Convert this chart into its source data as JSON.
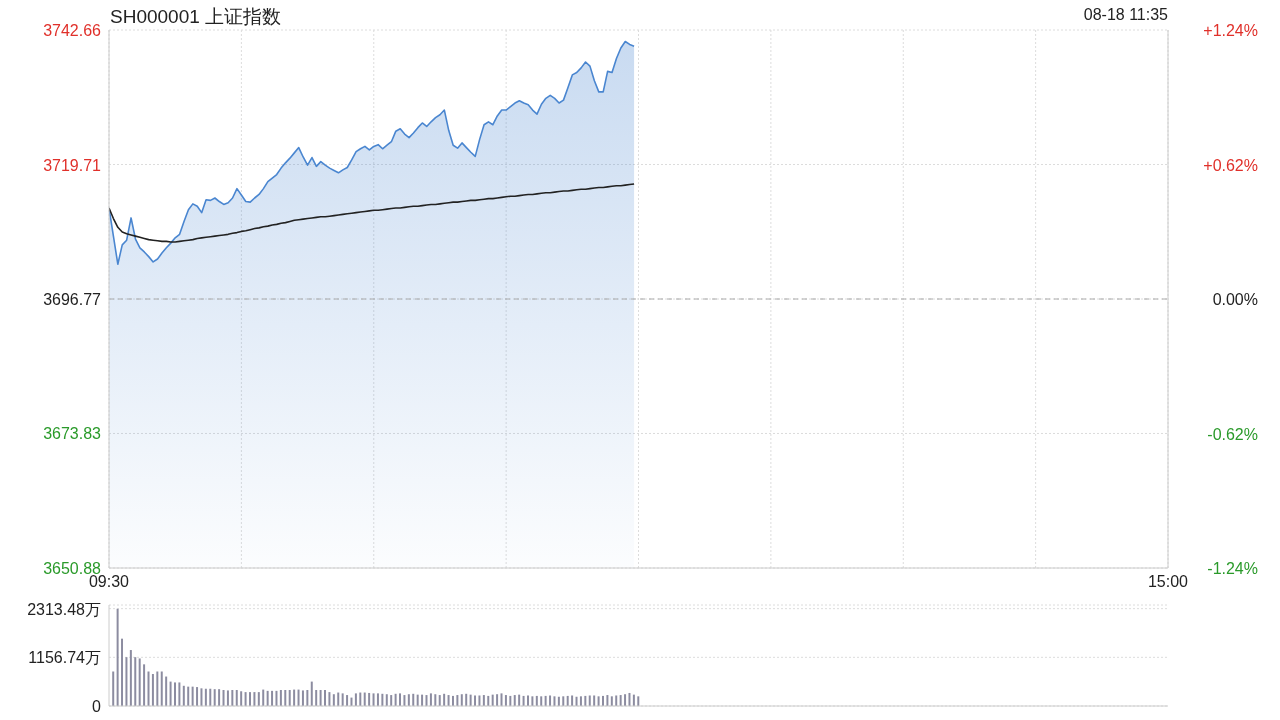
{
  "chart_data": [
    {
      "type": "area",
      "title": "SH000001 上证指数",
      "annotations": [
        "08-18 11:35"
      ],
      "categories": [
        "09:30",
        null,
        null,
        null,
        null,
        null,
        null,
        null,
        null,
        null,
        null,
        null,
        null,
        null,
        null,
        null,
        null,
        null,
        null,
        null,
        null,
        null,
        null,
        null,
        null,
        null,
        null,
        null,
        null,
        null,
        null,
        null,
        null,
        null,
        null,
        null,
        null,
        null,
        null,
        null,
        null,
        null,
        null,
        null,
        null,
        null,
        null,
        null,
        null,
        null,
        null,
        null,
        null,
        null,
        null,
        null,
        null,
        null,
        null,
        null,
        null,
        null,
        null,
        null,
        null,
        null,
        null,
        null,
        null,
        null,
        null,
        null,
        null,
        null,
        null,
        null,
        null,
        null,
        null,
        null,
        null,
        null,
        null,
        null,
        null,
        null,
        null,
        null,
        null,
        null,
        null,
        null,
        null,
        null,
        null,
        null,
        null,
        null,
        null,
        null,
        null,
        null,
        null,
        null,
        null,
        null,
        null,
        null,
        null,
        null,
        null,
        null,
        null,
        null,
        null,
        null,
        null,
        null,
        null,
        null,
        null,
        null,
        null,
        null,
        null,
        null,
        null,
        null,
        null,
        null,
        null,
        null,
        null,
        null,
        null,
        null,
        null,
        null,
        null,
        null,
        null,
        null,
        null,
        null,
        null,
        null,
        null,
        null,
        null,
        null,
        null,
        null,
        null,
        null,
        null,
        null,
        null,
        null,
        null,
        null,
        null,
        null,
        null,
        null,
        null,
        null,
        null,
        null,
        null,
        null,
        null,
        null,
        null,
        null,
        null,
        null,
        null,
        null,
        null,
        null,
        null,
        null,
        null,
        null,
        null,
        null,
        null,
        null,
        null,
        null,
        null,
        null,
        null,
        null,
        null,
        null,
        null,
        null,
        null,
        null,
        null,
        null,
        null,
        null,
        null,
        null,
        null,
        null,
        null,
        null,
        null,
        null,
        null,
        null,
        null,
        null,
        null,
        null,
        null,
        null,
        null,
        null,
        null,
        null,
        null,
        null,
        null,
        null,
        null,
        null,
        null,
        null,
        null,
        null,
        null,
        null,
        null,
        null,
        null,
        null,
        "15:00"
      ],
      "series": [
        {
          "color": "#4a86d0",
          "values": [
            3712.3,
            3707.5,
            3702.7,
            3706.0,
            3706.8,
            3710.6,
            3707.0,
            3705.5,
            3704.8,
            3704.0,
            3703.1,
            3703.6,
            3704.6,
            3705.5,
            3706.3,
            3707.2,
            3707.8,
            3710.0,
            3712.0,
            3713.0,
            3712.6,
            3711.5,
            3713.7,
            3713.6,
            3714.0,
            3713.4,
            3712.9,
            3713.2,
            3714.0,
            3715.6,
            3714.5,
            3713.4,
            3713.3,
            3714.0,
            3714.6,
            3715.6,
            3716.8,
            3717.4,
            3718.0,
            3719.1,
            3720.0,
            3720.8,
            3721.7,
            3722.6,
            3721.0,
            3719.6,
            3720.9,
            3719.4,
            3720.2,
            3719.6,
            3719.1,
            3718.7,
            3718.3,
            3718.8,
            3719.2,
            3720.5,
            3721.9,
            3722.4,
            3722.8,
            3722.2,
            3722.8,
            3723.1,
            3722.4,
            3723.0,
            3723.6,
            3725.4,
            3725.8,
            3724.9,
            3724.3,
            3725.1,
            3726.0,
            3726.8,
            3726.2,
            3727.0,
            3727.7,
            3728.2,
            3729.0,
            3725.5,
            3723.0,
            3722.5,
            3723.4,
            3722.6,
            3721.8,
            3721.1,
            3724.0,
            3726.5,
            3727.0,
            3726.5,
            3728.0,
            3729.0,
            3729.0,
            3729.6,
            3730.2,
            3730.6,
            3730.2,
            3729.9,
            3729.0,
            3728.3,
            3730.0,
            3731.0,
            3731.5,
            3731.0,
            3730.2,
            3730.7,
            3732.8,
            3735.0,
            3735.4,
            3736.2,
            3737.2,
            3736.5,
            3734.0,
            3732.1,
            3732.1,
            3735.6,
            3735.4,
            3737.8,
            3739.6,
            3740.7,
            3740.2,
            3739.9,
            null,
            null,
            null,
            null,
            null,
            null,
            null,
            null,
            null,
            null,
            null,
            null,
            null,
            null,
            null,
            null,
            null,
            null,
            null,
            null,
            null,
            null,
            null,
            null,
            null,
            null,
            null,
            null,
            null,
            null,
            null,
            null,
            null,
            null,
            null,
            null,
            null,
            null,
            null,
            null,
            null,
            null,
            null,
            null,
            null,
            null,
            null,
            null,
            null,
            null,
            null,
            null,
            null,
            null,
            null,
            null,
            null,
            null,
            null,
            null,
            null,
            null,
            null,
            null,
            null,
            null,
            null,
            null,
            null,
            null,
            null,
            null,
            null,
            null,
            null,
            null,
            null,
            null,
            null,
            null,
            null,
            null,
            null,
            null,
            null,
            null,
            null,
            null,
            null,
            null,
            null,
            null,
            null,
            null,
            null,
            null,
            null,
            null,
            null,
            null,
            null,
            null,
            null,
            null,
            null,
            null,
            null,
            null,
            null,
            null,
            null,
            null,
            null,
            null,
            null,
            null,
            null,
            null,
            null,
            null,
            null
          ]
        },
        {
          "type": "line",
          "color": "#222222",
          "values": [
            3712.3,
            3710.5,
            3709.0,
            3708.2,
            3707.9,
            3707.7,
            3707.5,
            3707.3,
            3707.1,
            3706.9,
            3706.8,
            3706.7,
            3706.6,
            3706.6,
            3706.5,
            3706.5,
            3706.6,
            3706.7,
            3706.8,
            3706.9,
            3707.1,
            3707.2,
            3707.3,
            3707.4,
            3707.5,
            3707.6,
            3707.7,
            3707.8,
            3708.0,
            3708.1,
            3708.3,
            3708.4,
            3708.6,
            3708.8,
            3708.9,
            3709.1,
            3709.2,
            3709.4,
            3709.5,
            3709.7,
            3709.8,
            3710.0,
            3710.2,
            3710.3,
            3710.4,
            3710.5,
            3710.6,
            3710.7,
            3710.8,
            3710.8,
            3710.9,
            3711.0,
            3711.1,
            3711.2,
            3711.3,
            3711.4,
            3711.5,
            3711.6,
            3711.7,
            3711.8,
            3711.9,
            3711.9,
            3712.0,
            3712.1,
            3712.2,
            3712.3,
            3712.3,
            3712.4,
            3712.5,
            3712.6,
            3712.6,
            3712.7,
            3712.8,
            3712.9,
            3712.9,
            3713.0,
            3713.1,
            3713.2,
            3713.3,
            3713.3,
            3713.4,
            3713.5,
            3713.6,
            3713.6,
            3713.7,
            3713.8,
            3713.9,
            3713.9,
            3714.0,
            3714.1,
            3714.2,
            3714.3,
            3714.3,
            3714.4,
            3714.5,
            3714.6,
            3714.6,
            3714.7,
            3714.8,
            3714.9,
            3714.9,
            3715.0,
            3715.1,
            3715.2,
            3715.2,
            3715.3,
            3715.4,
            3715.5,
            3715.5,
            3715.6,
            3715.7,
            3715.8,
            3715.8,
            3715.9,
            3716.0,
            3716.1,
            3716.1,
            3716.2,
            3716.3,
            3716.4,
            null,
            null,
            null,
            null,
            null,
            null,
            null,
            null,
            null,
            null,
            null,
            null,
            null,
            null,
            null,
            null,
            null,
            null,
            null,
            null,
            null,
            null,
            null,
            null,
            null,
            null,
            null,
            null,
            null,
            null,
            null,
            null,
            null,
            null,
            null,
            null,
            null,
            null,
            null,
            null,
            null,
            null,
            null,
            null,
            null,
            null,
            null,
            null,
            null,
            null,
            null,
            null,
            null,
            null,
            null,
            null,
            null,
            null,
            null,
            null,
            null,
            null,
            null,
            null,
            null,
            null,
            null,
            null,
            null,
            null,
            null,
            null,
            null,
            null,
            null,
            null,
            null,
            null,
            null,
            null,
            null,
            null,
            null,
            null,
            null,
            null,
            null,
            null,
            null,
            null,
            null,
            null,
            null,
            null,
            null,
            null,
            null,
            null,
            null,
            null,
            null,
            null,
            null,
            null,
            null,
            null,
            null,
            null,
            null,
            null,
            null,
            null,
            null,
            null,
            null,
            null,
            null,
            null,
            null,
            null,
            null
          ]
        }
      ],
      "ylim": [
        3650.88,
        3742.66
      ],
      "yticks": [
        3650.88,
        3673.83,
        3696.77,
        3719.71,
        3742.66
      ],
      "y2lim": [
        -1.24,
        1.24
      ],
      "y2ticks": [
        {
          "value": -1.24,
          "label": "-1.24%"
        },
        {
          "value": -0.62,
          "label": "-0.62%"
        },
        {
          "value": 0,
          "label": "0.00%"
        },
        {
          "value": 0.62,
          "label": "+0.62%"
        },
        {
          "value": 1.24,
          "label": "+1.24%"
        }
      ],
      "ref_lines": [
        {
          "axis": "y",
          "value": 3696.77,
          "line_style": "dashed",
          "color": "#aaaaaa"
        }
      ],
      "grid": true
    },
    {
      "type": "bar",
      "color": "#8c8ca0",
      "categories": [
        null,
        null,
        null,
        null,
        null,
        null,
        null,
        null,
        null,
        null,
        null,
        null,
        null,
        null,
        null,
        null,
        null,
        null,
        null,
        null,
        null,
        null,
        null,
        null,
        null,
        null,
        null,
        null,
        null,
        null,
        null,
        null,
        null,
        null,
        null,
        null,
        null,
        null,
        null,
        null,
        null,
        null,
        null,
        null,
        null,
        null,
        null,
        null,
        null,
        null,
        null,
        null,
        null,
        null,
        null,
        null,
        null,
        null,
        null,
        null,
        null,
        null,
        null,
        null,
        null,
        null,
        null,
        null,
        null,
        null,
        null,
        null,
        null,
        null,
        null,
        null,
        null,
        null,
        null,
        null,
        null,
        null,
        null,
        null,
        null,
        null,
        null,
        null,
        null,
        null,
        null,
        null,
        null,
        null,
        null,
        null,
        null,
        null,
        null,
        null,
        null,
        null,
        null,
        null,
        null,
        null,
        null,
        null,
        null,
        null,
        null,
        null,
        null,
        null,
        null,
        null,
        null,
        null,
        null,
        null,
        null,
        null,
        null,
        null,
        null,
        null,
        null,
        null,
        null,
        null,
        null,
        null,
        null,
        null,
        null,
        null,
        null,
        null,
        null,
        null,
        null,
        null,
        null,
        null,
        null,
        null,
        null,
        null,
        null,
        null,
        null,
        null,
        null,
        null,
        null,
        null,
        null,
        null,
        null,
        null,
        null,
        null,
        null,
        null,
        null,
        null,
        null,
        null,
        null,
        null,
        null,
        null,
        null,
        null,
        null,
        null,
        null,
        null,
        null,
        null,
        null,
        null,
        null,
        null,
        null,
        null,
        null,
        null,
        null,
        null,
        null,
        null,
        null,
        null,
        null,
        null,
        null,
        null,
        null,
        null,
        null,
        null,
        null,
        null,
        null,
        null,
        null,
        null,
        null,
        null,
        null,
        null,
        null,
        null,
        null,
        null,
        null,
        null,
        null,
        null,
        null,
        null,
        null,
        null,
        null,
        null,
        null,
        null,
        null,
        null,
        null,
        null,
        null,
        null,
        null,
        null,
        null,
        null,
        null,
        null,
        null
      ],
      "values": [
        null,
        820,
        2310,
        1600,
        1160,
        1330,
        1160,
        1130,
        990,
        820,
        760,
        820,
        820,
        700,
        580,
        560,
        560,
        480,
        460,
        460,
        450,
        420,
        410,
        410,
        400,
        400,
        380,
        370,
        380,
        380,
        350,
        330,
        330,
        330,
        330,
        390,
        360,
        360,
        360,
        380,
        380,
        380,
        390,
        390,
        370,
        380,
        580,
        380,
        380,
        380,
        330,
        280,
        320,
        300,
        260,
        200,
        300,
        320,
        320,
        310,
        300,
        300,
        290,
        280,
        260,
        290,
        300,
        260,
        280,
        290,
        270,
        270,
        260,
        300,
        280,
        260,
        290,
        260,
        240,
        260,
        280,
        290,
        270,
        250,
        250,
        260,
        240,
        270,
        280,
        300,
        260,
        240,
        260,
        270,
        240,
        250,
        230,
        240,
        230,
        240,
        250,
        230,
        220,
        230,
        240,
        250,
        220,
        230,
        240,
        250,
        250,
        230,
        240,
        260,
        230,
        250,
        260,
        280,
        310,
        270,
        230,
        null,
        null,
        null,
        null,
        null,
        null,
        null,
        null,
        null,
        null,
        null,
        null,
        null,
        null,
        null,
        null,
        null,
        null,
        null,
        null,
        null,
        null,
        null,
        null,
        null,
        null,
        null,
        null,
        null,
        null,
        null,
        null,
        null,
        null,
        null,
        null,
        null,
        null,
        null,
        null,
        null,
        null,
        null,
        null,
        null,
        null,
        null,
        null,
        null,
        null,
        null,
        null,
        null,
        null,
        null,
        null,
        null,
        null,
        null,
        null,
        null,
        null,
        null,
        null,
        null,
        null,
        null,
        null,
        null,
        null,
        null,
        null,
        null,
        null,
        null,
        null,
        null,
        null,
        null,
        null,
        null,
        null,
        null,
        null,
        null,
        null,
        null,
        null,
        null,
        null,
        null,
        null,
        null,
        null,
        null,
        null,
        null,
        null,
        null,
        null,
        null,
        null,
        null,
        null,
        null,
        null,
        null,
        null,
        null,
        null,
        null,
        null,
        null,
        null,
        null,
        null,
        null,
        null,
        null,
        null
      ],
      "ylim": [
        0,
        2400
      ],
      "yticks": [
        0,
        {
          "value": 1156.74,
          "label": "1156.74万"
        },
        {
          "value": 2313.48,
          "label": "2313.48万"
        }
      ],
      "tick_labels": "y",
      "grid": "y"
    }
  ]
}
